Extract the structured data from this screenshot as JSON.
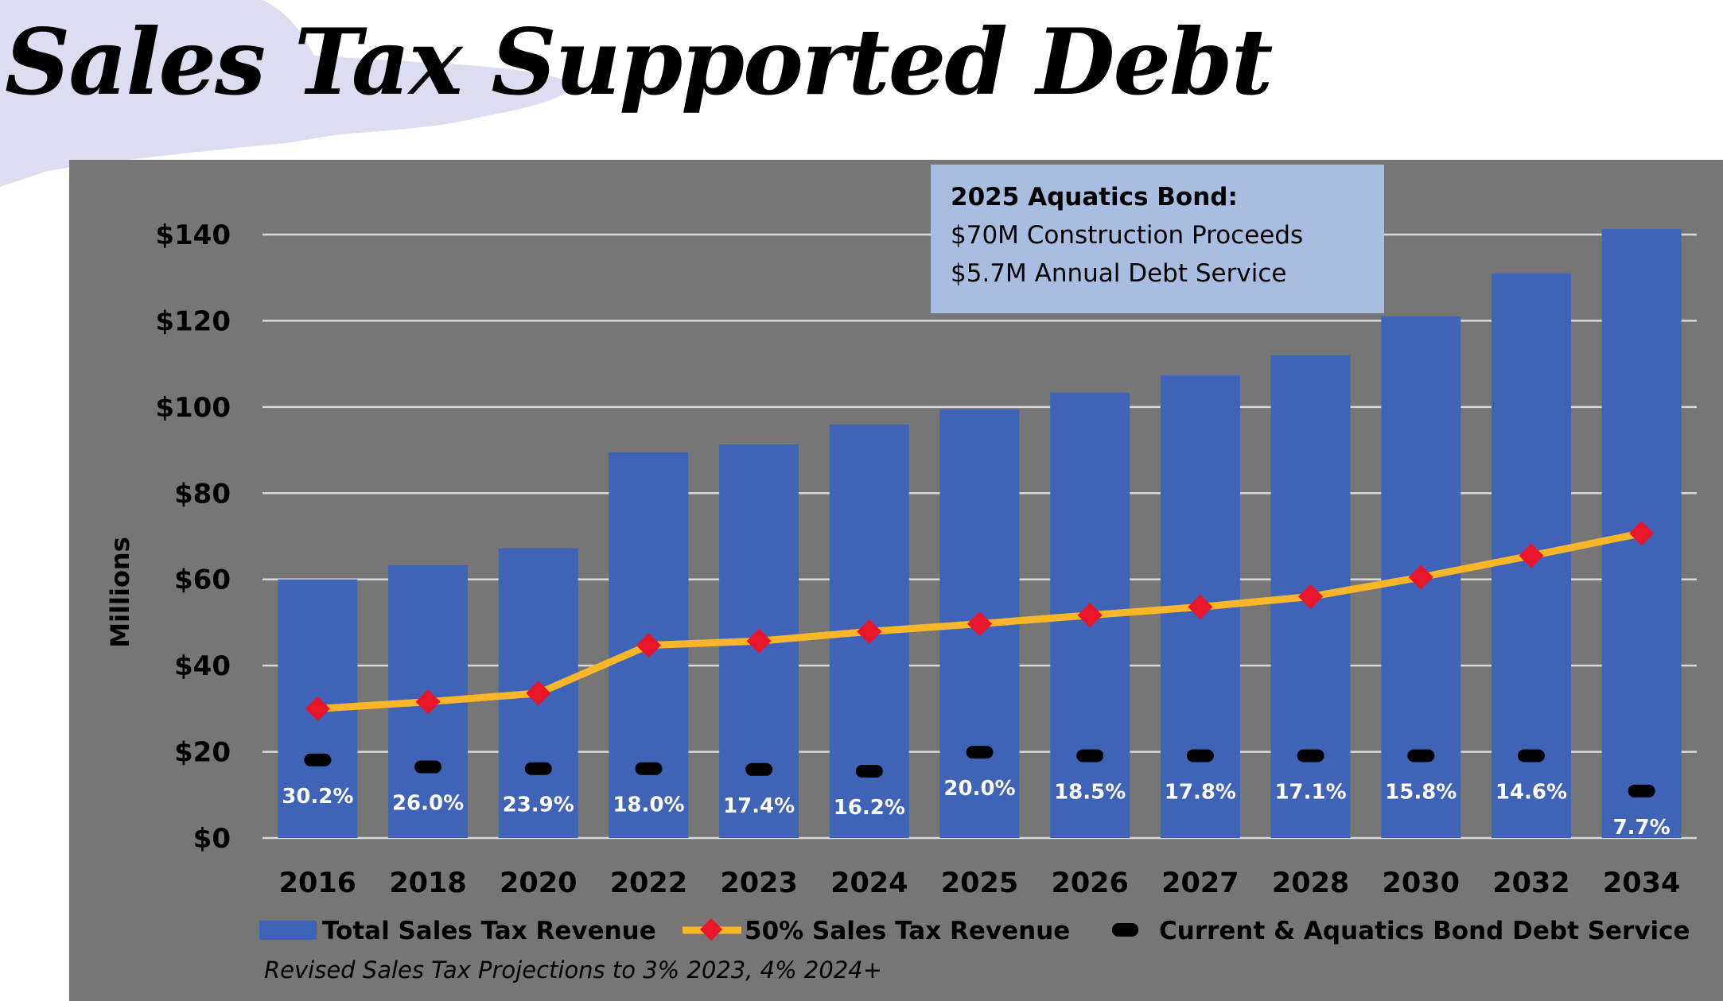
{
  "title": "Sales Tax Supported Debt",
  "colors": {
    "panel_bg": "#767676",
    "bar": "#3F63B7",
    "line": "#F9B629",
    "marker": "#E8152B",
    "dash": "#000000",
    "annotation_bg": "#A9BDE1",
    "brush": "#DCDDF0"
  },
  "chart_data": {
    "type": "bar",
    "categories": [
      "2016",
      "2018",
      "2020",
      "2022",
      "2023",
      "2024",
      "2025",
      "2026",
      "2027",
      "2028",
      "2030",
      "2032",
      "2034"
    ],
    "ylabel": "Millions",
    "ylim": [
      0,
      140
    ],
    "yticks": [
      0,
      20,
      40,
      60,
      80,
      100,
      120,
      140
    ],
    "ytick_labels": [
      "$0",
      "$20",
      "$40",
      "$60",
      "$80",
      "$100",
      "$120",
      "$140"
    ],
    "grid": true,
    "legend_position": "bottom",
    "series": [
      {
        "name": "Total Sales Tax Revenue",
        "type": "bar",
        "values": [
          60,
          63.3,
          67.2,
          89.5,
          91.3,
          95.9,
          99.4,
          103.3,
          107.3,
          112,
          121,
          131,
          141.3
        ]
      },
      {
        "name": "50% Sales Tax Revenue",
        "type": "line",
        "values": [
          30,
          31.6,
          33.6,
          44.7,
          45.7,
          47.9,
          49.7,
          51.7,
          53.6,
          56,
          60.5,
          65.5,
          70.7
        ]
      },
      {
        "name": "Current & Aquatics Bond Debt Service",
        "type": "marker",
        "values": [
          18.1,
          16.5,
          16.1,
          16.1,
          15.9,
          15.5,
          19.9,
          19.1,
          19.1,
          19.1,
          19.1,
          19.1,
          10.9
        ]
      }
    ],
    "percent_labels": [
      "30.2%",
      "26.0%",
      "23.9%",
      "18.0%",
      "17.4%",
      "16.2%",
      "20.0%",
      "18.5%",
      "17.8%",
      "17.1%",
      "15.8%",
      "14.6%",
      "7.7%"
    ],
    "annotation": {
      "title": "2025 Aquatics Bond:",
      "lines": [
        "$70M Construction Proceeds",
        "$5.7M Annual Debt Service"
      ]
    },
    "note": "Revised Sales Tax Projections to 3% 2023, 4% 2024+"
  }
}
